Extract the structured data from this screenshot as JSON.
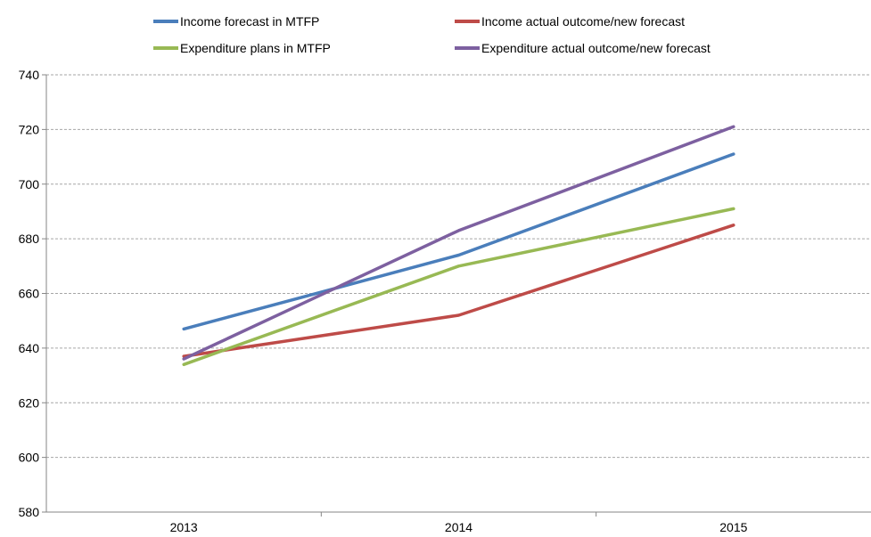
{
  "chart_data": {
    "type": "line",
    "categories": [
      "2013",
      "2014",
      "2015"
    ],
    "series": [
      {
        "name": "Income forecast in MTFP",
        "color": "#4a7ebb",
        "values": [
          647,
          674,
          711
        ]
      },
      {
        "name": "Income actual outcome/new forecast",
        "color": "#be4b48",
        "values": [
          637,
          652,
          685
        ]
      },
      {
        "name": "Expenditure plans in MTFP",
        "color": "#98b954",
        "values": [
          634,
          670,
          691
        ]
      },
      {
        "name": "Expenditure actual outcome/new forecast",
        "color": "#7d60a0",
        "values": [
          636,
          683,
          721
        ]
      }
    ],
    "title": "",
    "xlabel": "",
    "ylabel": "",
    "ylim": [
      580,
      740
    ],
    "yticks": [
      580,
      600,
      620,
      640,
      660,
      680,
      700,
      720,
      740
    ],
    "grid": "horizontal dashed",
    "legend_position": "top"
  }
}
